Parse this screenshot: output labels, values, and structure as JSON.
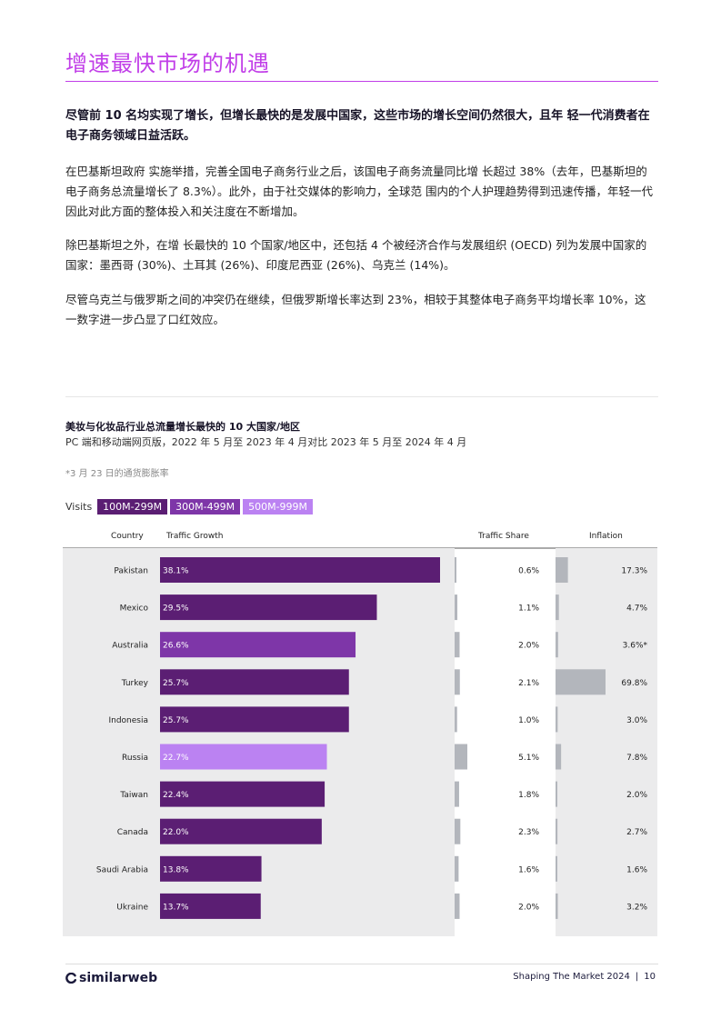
{
  "page": {
    "title": "增速最快市场的机遇",
    "lead": "尽管前 10 名均实现了增长，但增长最快的是发展中国家，这些市场的增长空间仍然很大，且年 轻一代消费者在电子商务领域日益活跃。",
    "paragraphs": [
      "在巴基斯坦政府 实施举措，完善全国电子商务行业之后，该国电子商务流量同比增 长超过 38%（去年，巴基斯坦的电子商务总流量增长了 8.3%）。此外，由于社交媒体的影响力，全球范 围内的个人护理趋势得到迅速传播，年轻一代因此对此方面的整体投入和关注度在不断增加。",
      "除巴基斯坦之外，在增 长最快的 10 个国家/地区中，还包括 4 个被经济合作与发展组织 (OECD) 列为发展中国家的国家：墨西哥 (30%)、土耳其 (26%)、印度尼西亚 (26%)、乌克兰 (14%)。",
      "尽管乌克兰与俄罗斯之间的冲突仍在继续，但俄罗斯增长率达到 23%，相较于其整体电子商务平均增长率 10%，这一数字进一步凸显了口红效应。"
    ]
  },
  "chart_header": {
    "title": "美妆与化妆品行业总流量增长最快的 10 大国家/地区",
    "subtitle": "PC 端和移动端网页版，2022 年 5 月至 2023 年 4 月对比 2023 年 5 月至 2024 年 4 月",
    "footnote": "*3 月 23 日的通货膨胀率"
  },
  "legend": {
    "label": "Visits",
    "items": [
      {
        "label": "100M-299M",
        "color": "#5b1e73"
      },
      {
        "label": "300M-499M",
        "color": "#7e36a8"
      },
      {
        "label": "500M-999M",
        "color": "#bb82f2"
      }
    ]
  },
  "columns": {
    "country": "Country",
    "growth": "Traffic Growth",
    "share": "Traffic Share",
    "inflation": "Inflation"
  },
  "chart_data": {
    "type": "bar",
    "categories": [
      "Pakistan",
      "Mexico",
      "Australia",
      "Turkey",
      "Indonesia",
      "Russia",
      "Taiwan",
      "Canada",
      "Saudi Arabia",
      "Ukraine"
    ],
    "series": [
      {
        "name": "Traffic Growth",
        "values": [
          38.1,
          29.5,
          26.6,
          25.7,
          25.7,
          22.7,
          22.4,
          22.0,
          13.8,
          13.7
        ],
        "labels": [
          "38.1%",
          "29.5%",
          "26.6%",
          "25.7%",
          "25.7%",
          "22.7%",
          "22.4%",
          "22.0%",
          "13.8%",
          "13.7%"
        ]
      },
      {
        "name": "Traffic Share",
        "values": [
          0.6,
          1.1,
          2.0,
          2.1,
          1.0,
          5.1,
          1.8,
          2.3,
          1.6,
          2.0
        ],
        "labels": [
          "0.6%",
          "1.1%",
          "2.0%",
          "2.1%",
          "1.0%",
          "5.1%",
          "1.8%",
          "2.3%",
          "1.6%",
          "2.0%"
        ]
      },
      {
        "name": "Inflation",
        "values": [
          17.3,
          4.7,
          3.6,
          69.8,
          3.0,
          7.8,
          2.0,
          2.7,
          1.6,
          3.2
        ],
        "labels": [
          "17.3%",
          "4.7%",
          "3.6%*",
          "69.8%",
          "3.0%",
          "7.8%",
          "2.0%",
          "2.7%",
          "1.6%",
          "3.2%"
        ]
      }
    ],
    "visit_tier": [
      "100M-299M",
      "100M-299M",
      "300M-499M",
      "100M-299M",
      "100M-299M",
      "500M-999M",
      "100M-299M",
      "100M-299M",
      "100M-299M",
      "100M-299M"
    ]
  },
  "footer": {
    "logo": "similarweb",
    "report": "Shaping The Market 2024",
    "separator": "|",
    "page_number": "10"
  },
  "colors": {
    "title": "#c13ee8",
    "panel": "#ebebec",
    "gray_bar": "#b3b6bc"
  }
}
